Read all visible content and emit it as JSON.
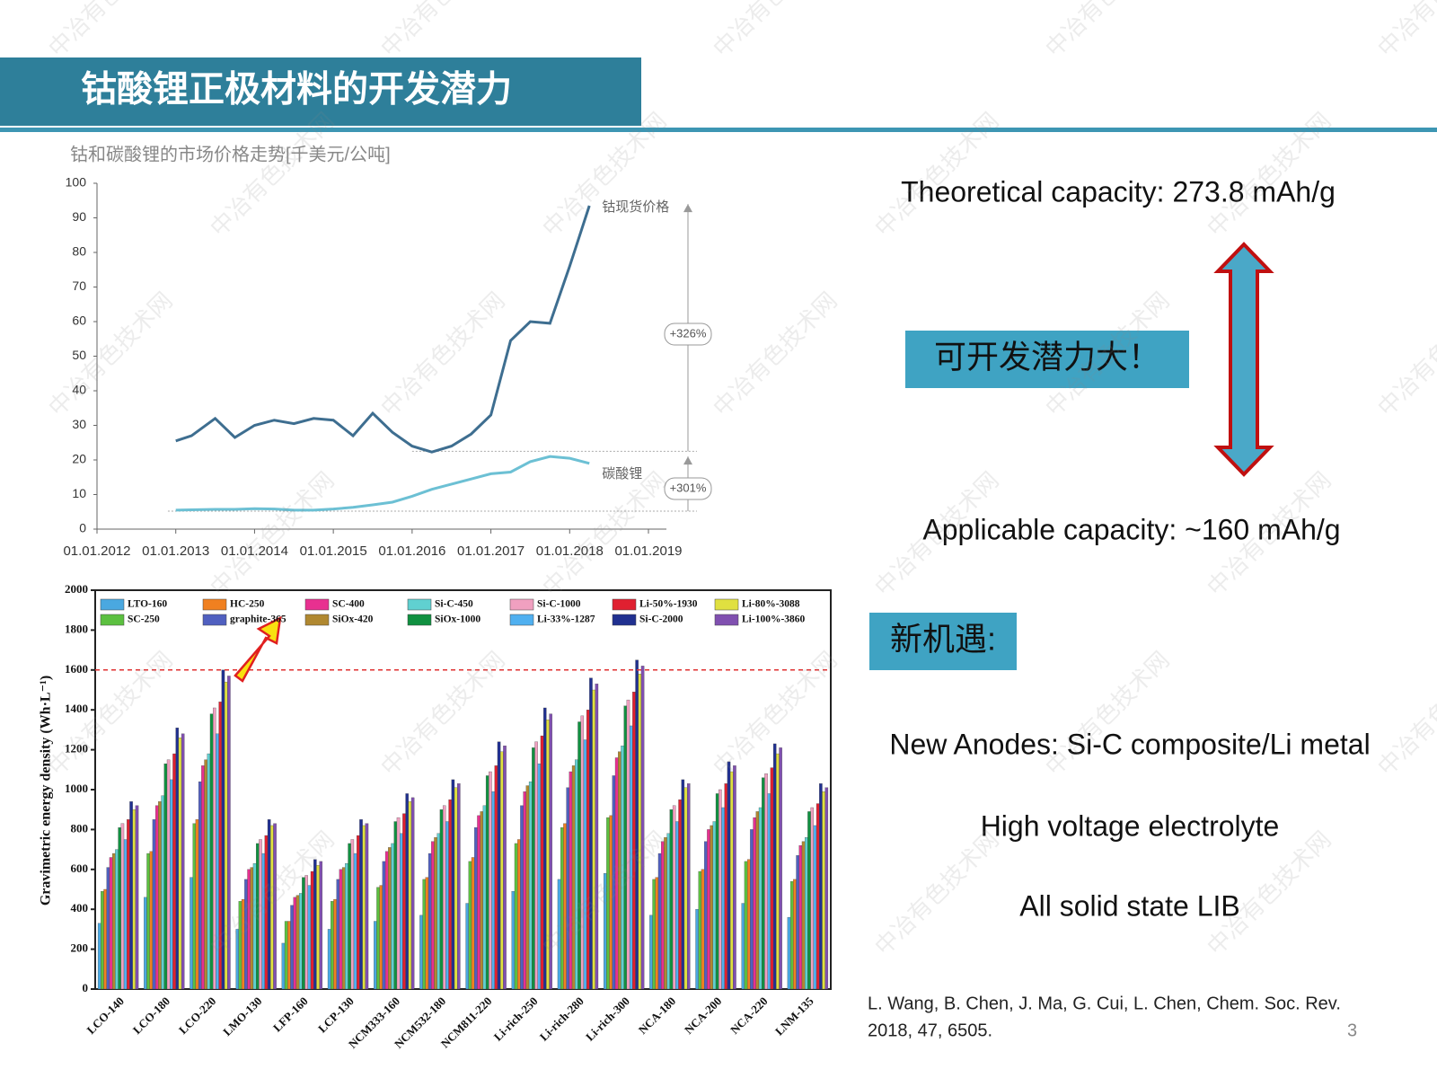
{
  "slide": {
    "title": "钴酸锂正极材料的开发潜力",
    "page_number": "3",
    "watermark": "中冶有色技术网"
  },
  "panel": {
    "theoretical": "Theoretical capacity: 273.8 mAh/g",
    "potential": "可开发潜力大！",
    "applicable": "Applicable capacity: ~160 mAh/g",
    "opportunity": "新机遇:",
    "points": [
      "New Anodes: Si-C composite/Li metal",
      "High voltage electrolyte",
      "All solid state LIB"
    ],
    "citation": [
      "L. Wang, B. Chen, J. Ma, G. Cui, L. Chen, Chem. Soc. Rev.",
      "2018, 47, 6505."
    ]
  },
  "chart_data": [
    {
      "type": "line",
      "title": "钴和碳酸锂的市场价格走势[千美元/公吨]",
      "x": [
        2013,
        2013.2,
        2013.5,
        2013.75,
        2014,
        2014.25,
        2014.5,
        2014.75,
        2015,
        2015.25,
        2015.5,
        2015.75,
        2016,
        2016.25,
        2016.5,
        2016.75,
        2017,
        2017.25,
        2017.5,
        2017.75,
        2018,
        2018.25
      ],
      "series": [
        {
          "name": "钴现货价格",
          "color": "#3e6e90",
          "values": [
            25.5,
            27,
            32,
            26.5,
            30,
            31.5,
            30.5,
            32,
            31.5,
            27,
            33.5,
            28,
            24,
            22.3,
            24,
            27.5,
            33,
            54.5,
            60,
            59.5,
            76,
            93.5
          ]
        },
        {
          "name": "碳酸锂",
          "color": "#6cc0d4",
          "values": [
            5.5,
            5.6,
            5.7,
            5.7,
            5.9,
            5.8,
            5.5,
            5.5,
            5.8,
            6.3,
            7,
            7.8,
            9.5,
            11.5,
            13,
            14.5,
            16,
            16.5,
            19.5,
            21,
            20.5,
            19
          ]
        }
      ],
      "annotations": [
        "+326%",
        "+301%"
      ],
      "xlim": [
        2012,
        2019
      ],
      "xticks": [
        {
          "value": 2012,
          "label": "01.01.2012"
        },
        {
          "value": 2013,
          "label": "01.01.2013"
        },
        {
          "value": 2014,
          "label": "01.01.2014"
        },
        {
          "value": 2015,
          "label": "01.01.2015"
        },
        {
          "value": 2016,
          "label": "01.01.2016"
        },
        {
          "value": 2017,
          "label": "01.01.2017"
        },
        {
          "value": 2018,
          "label": "01.01.2018"
        },
        {
          "value": 2019,
          "label": "01.01.2019"
        }
      ],
      "ylim": [
        0,
        100
      ],
      "yticks": [
        0,
        10,
        20,
        30,
        40,
        50,
        60,
        70,
        80,
        90,
        100
      ]
    },
    {
      "type": "bar",
      "ylabel": "Gravimetric energy density (Wh·L⁻¹)",
      "categories": [
        "LCO-140",
        "LCO-180",
        "LCO-220",
        "LMO-130",
        "LFP-160",
        "LCP-130",
        "NCM333-160",
        "NCM532-180",
        "NCM811-220",
        "Li-rich-250",
        "Li-rich-280",
        "Li-rich-300",
        "NCA-180",
        "NCA-200",
        "NCA-220",
        "LNM-135"
      ],
      "series": [
        {
          "name": "LTO-160",
          "color": "#4aa8e0",
          "values": [
            330,
            460,
            560,
            300,
            230,
            300,
            340,
            370,
            430,
            490,
            550,
            580,
            370,
            400,
            430,
            360
          ]
        },
        {
          "name": "SC-250",
          "color": "#5cc040",
          "values": [
            490,
            680,
            830,
            440,
            340,
            440,
            510,
            550,
            640,
            730,
            810,
            860,
            550,
            590,
            640,
            540
          ]
        },
        {
          "name": "HC-250",
          "color": "#f08020",
          "values": [
            500,
            690,
            850,
            450,
            340,
            450,
            520,
            560,
            660,
            750,
            830,
            870,
            560,
            600,
            650,
            550
          ]
        },
        {
          "name": "graphite-365",
          "color": "#5060c0",
          "values": [
            610,
            850,
            1040,
            550,
            420,
            550,
            640,
            680,
            810,
            920,
            1010,
            1070,
            680,
            740,
            800,
            670
          ]
        },
        {
          "name": "SC-400",
          "color": "#e83090",
          "values": [
            660,
            920,
            1120,
            600,
            460,
            600,
            690,
            740,
            870,
            990,
            1090,
            1160,
            740,
            800,
            860,
            720
          ]
        },
        {
          "name": "SiOx-420",
          "color": "#b08830",
          "values": [
            680,
            940,
            1150,
            610,
            470,
            610,
            710,
            760,
            890,
            1020,
            1120,
            1190,
            760,
            820,
            890,
            740
          ]
        },
        {
          "name": "Si-C-450",
          "color": "#60d0d0",
          "values": [
            700,
            970,
            1180,
            630,
            480,
            630,
            730,
            780,
            920,
            1040,
            1150,
            1220,
            780,
            840,
            910,
            760
          ]
        },
        {
          "name": "SiOx-1000",
          "color": "#109040",
          "values": [
            810,
            1130,
            1380,
            730,
            560,
            730,
            840,
            900,
            1070,
            1210,
            1340,
            1420,
            900,
            980,
            1060,
            890
          ]
        },
        {
          "name": "Si-C-1000",
          "color": "#f0a0c0",
          "values": [
            830,
            1150,
            1410,
            750,
            570,
            750,
            860,
            920,
            1090,
            1240,
            1370,
            1450,
            920,
            1000,
            1080,
            910
          ]
        },
        {
          "name": "Li-33%-1287",
          "color": "#50b0f0",
          "values": [
            750,
            1050,
            1280,
            680,
            520,
            680,
            780,
            840,
            990,
            1130,
            1250,
            1320,
            840,
            910,
            980,
            820
          ]
        },
        {
          "name": "Li-50%-1930",
          "color": "#e02030",
          "values": [
            850,
            1180,
            1440,
            770,
            590,
            770,
            880,
            950,
            1120,
            1270,
            1400,
            1490,
            950,
            1030,
            1110,
            930
          ]
        },
        {
          "name": "Si-C-2000",
          "color": "#203090",
          "values": [
            940,
            1310,
            1600,
            850,
            650,
            850,
            980,
            1050,
            1240,
            1410,
            1560,
            1650,
            1050,
            1140,
            1230,
            1030
          ]
        },
        {
          "name": "Li-80%-3088",
          "color": "#e0e040",
          "values": [
            900,
            1260,
            1540,
            820,
            620,
            820,
            940,
            1010,
            1190,
            1350,
            1500,
            1580,
            1010,
            1090,
            1180,
            990
          ]
        },
        {
          "name": "Li-100%-3860",
          "color": "#8050b0",
          "values": [
            920,
            1280,
            1570,
            830,
            640,
            830,
            960,
            1030,
            1220,
            1380,
            1530,
            1620,
            1030,
            1120,
            1210,
            1010
          ]
        }
      ],
      "reference_line": {
        "value": 1600,
        "color": "#e03030"
      },
      "ylim": [
        0,
        2000
      ],
      "yticks": [
        0,
        200,
        400,
        600,
        800,
        1000,
        1200,
        1400,
        1600,
        1800,
        2000
      ]
    }
  ]
}
